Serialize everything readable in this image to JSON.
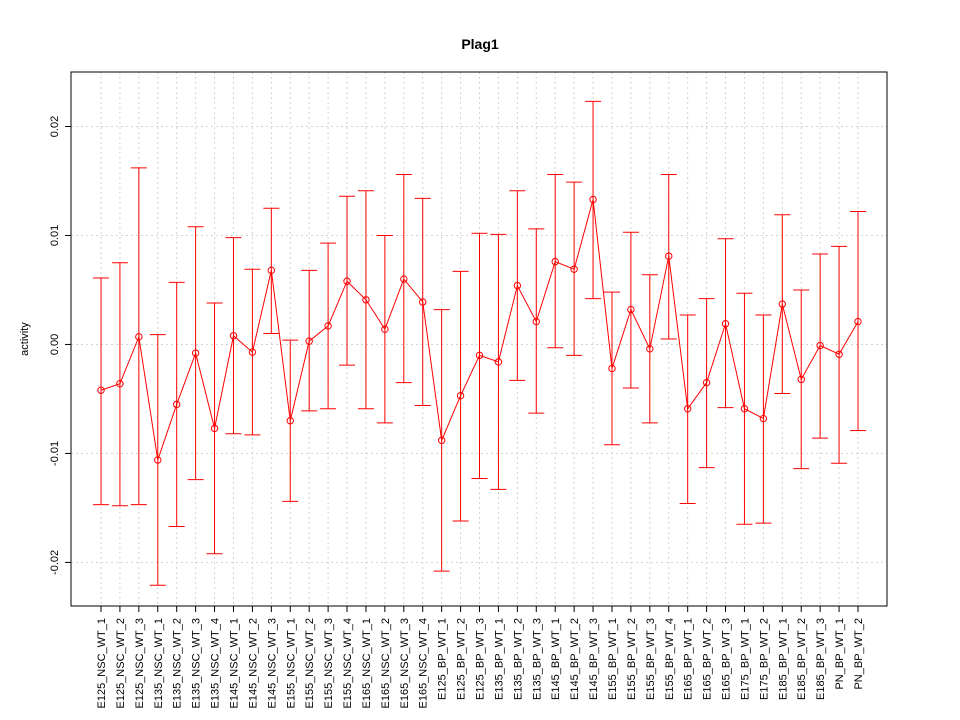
{
  "chart_data": {
    "type": "line",
    "title": "Plag1",
    "xlabel": "",
    "ylabel": "activity",
    "ylim": [
      -0.024,
      0.025
    ],
    "yticks": [
      -0.02,
      -0.01,
      0.0,
      0.01,
      0.02
    ],
    "ytick_labels": [
      "-0.02",
      "-0.01",
      "0.00",
      "0.01",
      "0.02"
    ],
    "grid": true,
    "error_bars": true,
    "color": "#ff0000",
    "categories": [
      "E125_NSC_WT_1",
      "E125_NSC_WT_2",
      "E125_NSC_WT_3",
      "E135_NSC_WT_1",
      "E135_NSC_WT_2",
      "E135_NSC_WT_3",
      "E135_NSC_WT_4",
      "E145_NSC_WT_1",
      "E145_NSC_WT_2",
      "E145_NSC_WT_3",
      "E155_NSC_WT_1",
      "E155_NSC_WT_2",
      "E155_NSC_WT_3",
      "E155_NSC_WT_4",
      "E165_NSC_WT_1",
      "E165_NSC_WT_2",
      "E165_NSC_WT_3",
      "E165_NSC_WT_4",
      "E125_BP_WT_1",
      "E125_BP_WT_2",
      "E125_BP_WT_3",
      "E135_BP_WT_1",
      "E135_BP_WT_2",
      "E135_BP_WT_3",
      "E145_BP_WT_1",
      "E145_BP_WT_2",
      "E145_BP_WT_3",
      "E155_BP_WT_1",
      "E155_BP_WT_2",
      "E155_BP_WT_3",
      "E155_BP_WT_4",
      "E165_BP_WT_1",
      "E165_BP_WT_2",
      "E165_BP_WT_3",
      "E175_BP_WT_1",
      "E175_BP_WT_2",
      "E185_BP_WT_1",
      "E185_BP_WT_2",
      "E185_BP_WT_3",
      "PN_BP_WT_1",
      "PN_BP_WT_2"
    ],
    "values": [
      -0.0042,
      -0.0036,
      0.0007,
      -0.0106,
      -0.0055,
      -0.0008,
      -0.0077,
      0.0008,
      -0.0007,
      0.0068,
      -0.007,
      0.0003,
      0.0017,
      0.0058,
      0.0041,
      0.0014,
      0.006,
      0.0039,
      -0.0088,
      -0.0047,
      -0.001,
      -0.0016,
      0.0054,
      0.0021,
      0.0076,
      0.0069,
      0.0133,
      -0.0022,
      0.0032,
      -0.0004,
      0.0081,
      -0.0059,
      -0.0035,
      0.0019,
      -0.0059,
      -0.0068,
      0.0037,
      -0.0032,
      -0.0001,
      -0.0009,
      0.0021
    ],
    "upper": [
      0.0061,
      0.0075,
      0.0162,
      0.0009,
      0.0057,
      0.0108,
      0.0038,
      0.0098,
      0.0069,
      0.0125,
      0.0004,
      0.0068,
      0.0093,
      0.0136,
      0.0141,
      0.01,
      0.0156,
      0.0134,
      0.0032,
      0.0067,
      0.0102,
      0.0101,
      0.0141,
      0.0106,
      0.0156,
      0.0149,
      0.0223,
      0.0048,
      0.0103,
      0.0064,
      0.0156,
      0.0027,
      0.0042,
      0.0097,
      0.0047,
      0.0027,
      0.0119,
      0.005,
      0.0083,
      0.009,
      0.0122
    ],
    "lower": [
      -0.0147,
      -0.0148,
      -0.0147,
      -0.0221,
      -0.0167,
      -0.0124,
      -0.0192,
      -0.0082,
      -0.0083,
      0.001,
      -0.0144,
      -0.0061,
      -0.0059,
      -0.0019,
      -0.0059,
      -0.0072,
      -0.0035,
      -0.0056,
      -0.0208,
      -0.0162,
      -0.0123,
      -0.0133,
      -0.0033,
      -0.0063,
      -0.0003,
      -0.001,
      0.0042,
      -0.0092,
      -0.004,
      -0.0072,
      0.0005,
      -0.0146,
      -0.0113,
      -0.0058,
      -0.0165,
      -0.0164,
      -0.0045,
      -0.0114,
      -0.0086,
      -0.0109,
      -0.0079
    ]
  }
}
